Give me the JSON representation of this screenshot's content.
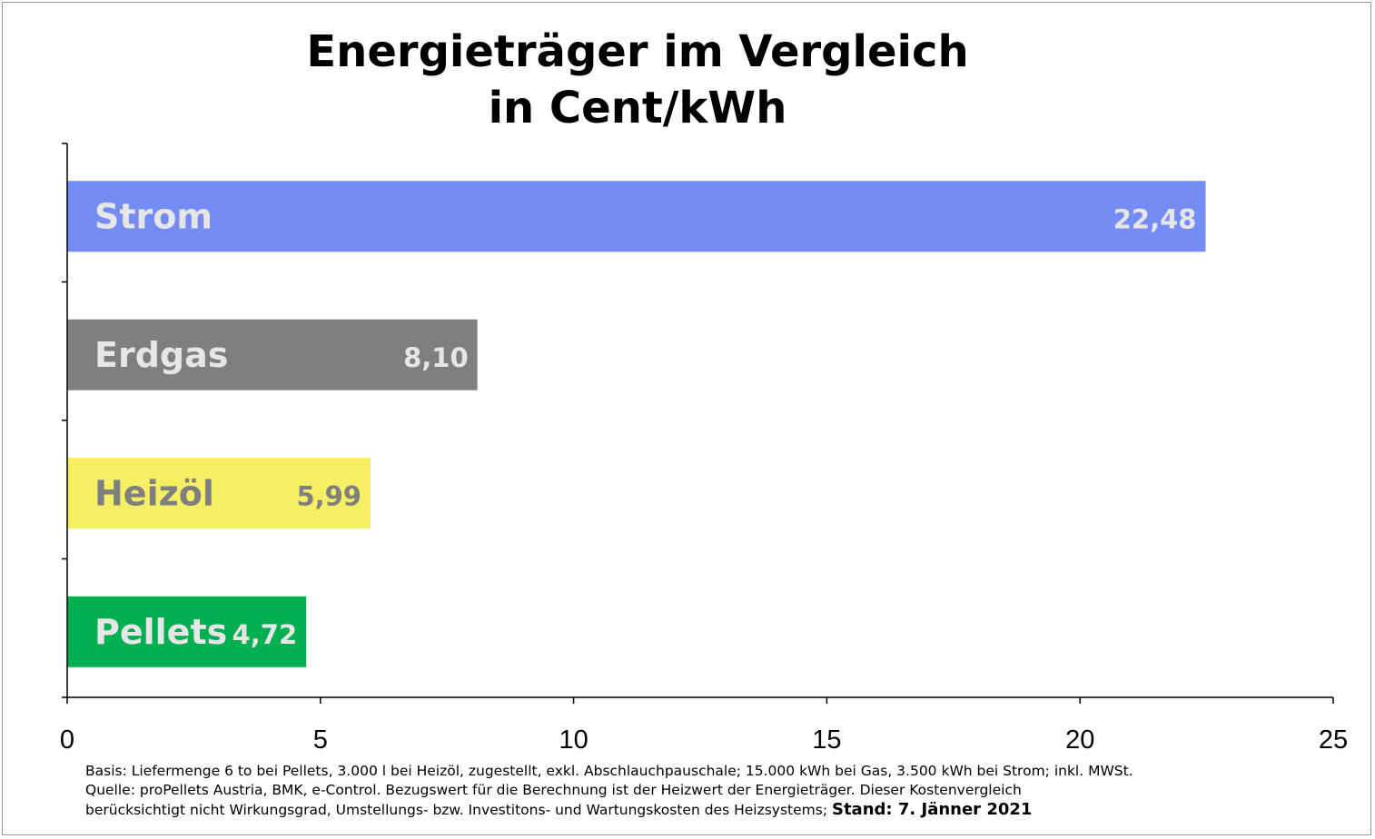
{
  "chart_data": {
    "type": "bar",
    "orientation": "horizontal",
    "title": [
      "Energieträger im Vergleich",
      "in Cent/kWh"
    ],
    "categories": [
      "Strom",
      "Erdgas",
      "Heizöl",
      "Pellets"
    ],
    "values": [
      22.48,
      8.1,
      5.99,
      4.72
    ],
    "value_labels": [
      "22,48",
      "8,10",
      "5,99",
      "4,72"
    ],
    "colors": [
      "#768cf5",
      "#7f7f7f",
      "#f5ef64",
      "#00b050"
    ],
    "label_colors": [
      "#e6e6e6",
      "#e6e6e6",
      "#7f7f7f",
      "#e6e6e6"
    ],
    "xlim": [
      0,
      25
    ],
    "xticks": [
      0,
      5,
      10,
      15,
      20,
      25
    ],
    "xlabel": "",
    "ylabel": "",
    "grid": false,
    "legend": "none"
  },
  "footnote": {
    "line1": "Basis: Liefermenge 6 to bei Pellets, 3.000 l bei Heizöl, zugestellt, exkl. Abschlauchpauschale; 15.000 kWh bei Gas, 3.500 kWh bei Strom; inkl. MWSt.",
    "line2": "Quelle: proPellets Austria, BMK, e-Control. Bezugswert für die Berechnung ist der Heizwert der Energieträger. Dieser Kostenvergleich",
    "line3": "berücksichtigt nicht Wirkungsgrad, Umstellungs- bzw. Investitons- und Wartungskosten des Heizsystems;",
    "stand": "Stand: 7. Jänner 2021"
  }
}
